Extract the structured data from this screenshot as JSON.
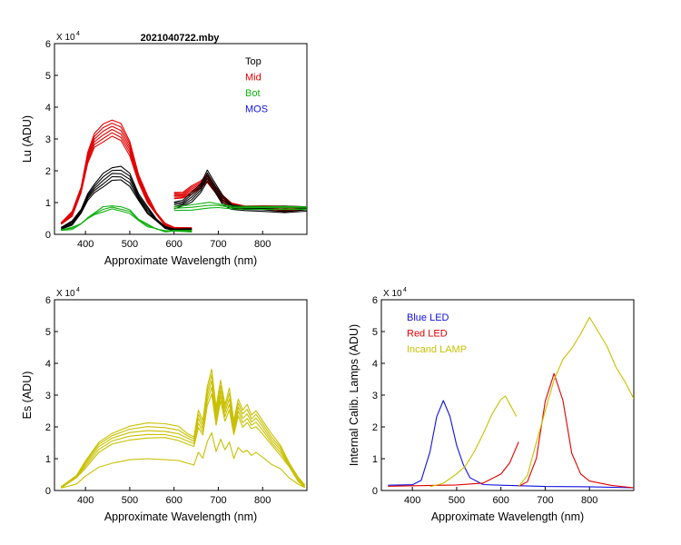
{
  "figure_title": "2021040722.mby",
  "colors": {
    "top": "#000000",
    "mid": "#e00000",
    "bot": "#10b010",
    "mos": "#1010e0",
    "blue_led": "#1010e0",
    "red_led": "#e00000",
    "lamp": "#c8c000"
  },
  "chart_data": [
    {
      "type": "line",
      "title": "2021040722.mby",
      "xlabel": "Approximate Wavelength (nm)",
      "ylabel": "Lu (ADU)",
      "y_multiplier": "X 10",
      "y_exponent": "4",
      "xlim": [
        330,
        900
      ],
      "ylim": [
        0,
        6
      ],
      "xticks": [
        "400",
        "500",
        "600",
        "700",
        "800"
      ],
      "xtick_values": [
        400,
        500,
        600,
        700,
        800
      ],
      "yticks": [
        "0",
        "1",
        "2",
        "3",
        "4",
        "5",
        "6"
      ],
      "legend": [
        "Top",
        "Mid",
        "Bot",
        "MOS"
      ],
      "series": [
        {
          "name": "Mid",
          "color_key": "mid",
          "copies": [
            1.0,
            0.97,
            0.94,
            0.91,
            0.88,
            0.85
          ],
          "segments": [
            {
              "x": [
                345,
                370,
                390,
                405,
                420,
                440,
                460,
                480,
                500,
                520,
                540,
                560,
                580,
                600,
                640
              ],
              "y": [
                0.35,
                0.7,
                1.5,
                2.6,
                3.2,
                3.45,
                3.6,
                3.5,
                2.9,
                1.9,
                1.2,
                0.7,
                0.35,
                0.2,
                0.18
              ]
            },
            {
              "x": [
                600,
                620,
                640,
                660,
                675,
                690,
                710,
                730,
                760,
                800,
                850,
                900
              ],
              "y": [
                1.3,
                1.35,
                1.5,
                1.7,
                1.9,
                1.6,
                1.2,
                1.0,
                0.92,
                0.9,
                0.88,
                0.88
              ]
            }
          ]
        },
        {
          "name": "Top",
          "color_key": "top",
          "copies": [
            1.0,
            0.95,
            0.9,
            0.85,
            0.8
          ],
          "segments": [
            {
              "x": [
                345,
                370,
                390,
                405,
                420,
                440,
                460,
                480,
                500,
                520,
                540,
                560,
                580,
                600,
                640
              ],
              "y": [
                0.2,
                0.4,
                0.8,
                1.3,
                1.6,
                1.9,
                2.1,
                2.15,
                1.9,
                1.3,
                0.85,
                0.5,
                0.25,
                0.15,
                0.15
              ]
            },
            {
              "x": [
                600,
                620,
                640,
                660,
                675,
                690,
                710,
                730,
                760,
                800,
                850,
                900
              ],
              "y": [
                1.0,
                1.1,
                1.3,
                1.6,
                2.05,
                1.7,
                1.2,
                0.95,
                0.9,
                0.88,
                0.88,
                0.88
              ]
            }
          ]
        },
        {
          "name": "Bot",
          "color_key": "bot",
          "copies": [
            1.0,
            0.93,
            0.86
          ],
          "segments": [
            {
              "x": [
                345,
                370,
                390,
                405,
                420,
                440,
                460,
                480,
                500,
                520,
                540,
                560,
                580,
                600,
                640
              ],
              "y": [
                0.12,
                0.2,
                0.35,
                0.55,
                0.7,
                0.85,
                0.9,
                0.88,
                0.75,
                0.5,
                0.3,
                0.18,
                0.12,
                0.1,
                0.1
              ]
            },
            {
              "x": [
                600,
                640,
                680,
                700,
                730,
                800,
                900
              ],
              "y": [
                0.85,
                0.9,
                1.0,
                0.95,
                0.9,
                0.88,
                0.88
              ]
            }
          ]
        }
      ]
    },
    {
      "type": "line",
      "title": "",
      "xlabel": "Approximate Wavelength (nm)",
      "ylabel": "Es  (ADU)",
      "y_multiplier": "X 10",
      "y_exponent": "4",
      "xlim": [
        330,
        900
      ],
      "ylim": [
        0,
        6
      ],
      "xticks": [
        "400",
        "500",
        "600",
        "700",
        "800"
      ],
      "xtick_values": [
        400,
        500,
        600,
        700,
        800
      ],
      "yticks": [
        "0",
        "1",
        "2",
        "3",
        "4",
        "5",
        "6"
      ],
      "series": [
        {
          "name": "Es",
          "color_key": "lamp",
          "copies": [
            1.0,
            0.95,
            0.9,
            0.85,
            0.8,
            0.47
          ],
          "segments": [
            {
              "x": [
                345,
                380,
                400,
                430,
                460,
                500,
                540,
                580,
                610,
                630,
                645,
                655,
                665,
                675,
                685,
                695,
                705,
                715,
                725,
                735,
                745,
                755,
                765,
                775,
                785,
                800,
                820,
                840,
                860,
                880,
                895
              ],
              "y": [
                0.1,
                0.5,
                0.9,
                1.5,
                1.8,
                2.0,
                2.1,
                2.1,
                2.0,
                1.8,
                1.7,
                2.5,
                2.2,
                3.3,
                3.8,
                2.6,
                3.5,
                2.7,
                3.2,
                2.2,
                2.9,
                2.5,
                2.7,
                2.4,
                2.5,
                2.2,
                1.8,
                1.4,
                0.9,
                0.4,
                0.15
              ]
            }
          ]
        }
      ]
    },
    {
      "type": "line",
      "title": "",
      "xlabel": "Approximate Wavelength (nm)",
      "ylabel": "Internal Calib. Lamps  (ADU)",
      "y_multiplier": "X 10",
      "y_exponent": "4",
      "xlim": [
        330,
        900
      ],
      "ylim": [
        0,
        6
      ],
      "xticks": [
        "400",
        "500",
        "600",
        "700",
        "800"
      ],
      "xtick_values": [
        400,
        500,
        600,
        700,
        800
      ],
      "yticks": [
        "0",
        "1",
        "2",
        "3",
        "4",
        "5",
        "6"
      ],
      "legend": [
        "Blue LED",
        "Red LED",
        "Incand LAMP"
      ],
      "series": [
        {
          "name": "Blue LED",
          "color_key": "blue_led",
          "copies": [
            1.0
          ],
          "segments": [
            {
              "x": [
                345,
                400,
                420,
                440,
                455,
                470,
                485,
                500,
                515,
                530,
                560,
                600,
                700,
                800,
                900
              ],
              "y": [
                0.15,
                0.15,
                0.35,
                1.2,
                2.3,
                2.8,
                2.3,
                1.4,
                0.8,
                0.4,
                0.2,
                0.15,
                0.12,
                0.12,
                0.1
              ]
            }
          ]
        },
        {
          "name": "Red LED",
          "color_key": "red_led",
          "copies": [
            1.0
          ],
          "segments": [
            {
              "x": [
                345,
                500,
                560,
                600,
                620,
                640
              ],
              "y": [
                0.12,
                0.15,
                0.25,
                0.5,
                0.9,
                1.5
              ]
            },
            {
              "x": [
                640,
                660,
                680,
                700,
                720,
                740,
                760,
                780,
                800,
                850,
                900
              ],
              "y": [
                0.1,
                0.3,
                1.0,
                2.8,
                3.7,
                2.8,
                1.2,
                0.5,
                0.3,
                0.15,
                0.1
              ]
            }
          ]
        },
        {
          "name": "Incand LAMP",
          "color_key": "lamp",
          "copies": [
            1.0
          ],
          "segments": [
            {
              "x": [
                440,
                470,
                500,
                520,
                540,
                560,
                580,
                600,
                610,
                620,
                635
              ],
              "y": [
                0.1,
                0.2,
                0.5,
                0.8,
                1.2,
                1.8,
                2.4,
                2.85,
                2.95,
                2.75,
                2.35
              ]
            },
            {
              "x": [
                640,
                660,
                680,
                700,
                720,
                740,
                760,
                780,
                800,
                820,
                840,
                860,
                880,
                900
              ],
              "y": [
                0.1,
                0.5,
                1.5,
                2.5,
                3.5,
                4.1,
                4.5,
                4.9,
                5.45,
                5.0,
                4.5,
                3.9,
                3.4,
                2.9
              ]
            }
          ]
        }
      ]
    }
  ]
}
